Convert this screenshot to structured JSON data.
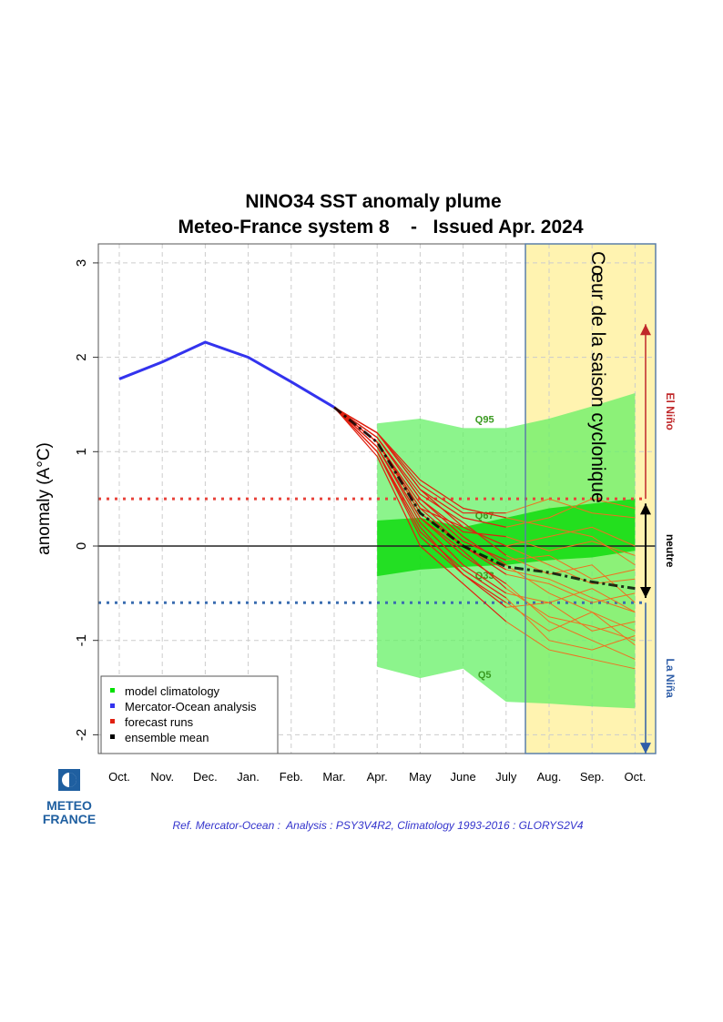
{
  "chart_data": {
    "type": "line",
    "title": "NINO34 SST anomaly plume",
    "subtitle": "Meteo-France system 8    -   Issued Apr. 2024",
    "ylabel": "anomaly (A°C)",
    "ylim": [
      -2.2,
      3.2
    ],
    "yticks": [
      "-2",
      "-1",
      "0",
      "1",
      "2",
      "3"
    ],
    "categories": [
      "Oct.",
      "Nov.",
      "Dec.",
      "Jan.",
      "Feb.",
      "Mar.",
      "Apr.",
      "May",
      "June",
      "July",
      "Aug.",
      "Sep.",
      "Oct."
    ],
    "grid": true,
    "legend_placement": "bottom-left",
    "legend": [
      {
        "label": "model climatology",
        "color": "#00e000"
      },
      {
        "label": "Mercator-Ocean analysis",
        "color": "#3333ee"
      },
      {
        "label": "forecast runs",
        "color": "#e02010"
      },
      {
        "label": "ensemble mean",
        "color": "#000000"
      }
    ],
    "analysis": {
      "start_index": 0,
      "values": [
        1.77,
        1.95,
        2.16,
        2.0,
        1.74,
        1.47
      ]
    },
    "ensemble_mean": {
      "start_index": 5,
      "values": [
        1.47,
        1.1,
        0.35,
        0.0,
        -0.22,
        -0.28,
        -0.38,
        -0.45
      ]
    },
    "climatology": {
      "start_index": 6,
      "Q95": [
        1.3,
        1.35,
        1.25,
        1.25,
        1.35,
        1.48,
        1.62
      ],
      "Q67": [
        0.27,
        0.3,
        0.2,
        0.3,
        0.4,
        0.45,
        0.5
      ],
      "Q33": [
        -0.32,
        -0.25,
        -0.22,
        -0.2,
        -0.15,
        -0.12,
        -0.05
      ],
      "Q5": [
        -1.28,
        -1.4,
        -1.3,
        -1.65,
        -1.67,
        -1.7,
        -1.72
      ],
      "labels": [
        "Q95",
        "Q67",
        "Q33",
        "Q5"
      ]
    },
    "forecast_runs": {
      "start_index": 5,
      "runs": [
        [
          1.47,
          1.2,
          0.6,
          0.3,
          0.2,
          0.3,
          0.5,
          0.4
        ],
        [
          1.47,
          1.15,
          0.5,
          0.1,
          -0.2,
          -0.5,
          -0.7,
          -0.9
        ],
        [
          1.47,
          1.05,
          0.3,
          -0.1,
          -0.4,
          -0.8,
          -1.0,
          -1.2
        ],
        [
          1.47,
          1.1,
          0.4,
          0.2,
          0.0,
          0.1,
          0.2,
          0.0
        ],
        [
          1.47,
          1.0,
          0.2,
          -0.3,
          -0.6,
          -0.9,
          -0.7,
          -1.05
        ],
        [
          1.47,
          1.2,
          0.7,
          0.4,
          0.3,
          0.2,
          0.1,
          -0.2
        ],
        [
          1.47,
          1.1,
          0.35,
          0.0,
          -0.3,
          -0.4,
          -0.6,
          -0.5
        ],
        [
          1.47,
          0.95,
          0.0,
          -0.4,
          -0.8,
          -1.1,
          -1.2,
          -1.3
        ],
        [
          1.47,
          1.15,
          0.55,
          0.25,
          -0.1,
          -0.3,
          -0.2,
          -0.6
        ],
        [
          1.47,
          1.05,
          0.25,
          -0.2,
          -0.5,
          -0.6,
          -0.9,
          -0.8
        ],
        [
          1.47,
          1.2,
          0.65,
          0.35,
          0.35,
          0.5,
          0.35,
          0.3
        ],
        [
          1.47,
          1.0,
          0.1,
          -0.3,
          -0.65,
          -0.6,
          -0.45,
          -0.7
        ],
        [
          1.47,
          1.1,
          0.45,
          0.05,
          -0.15,
          -0.1,
          -0.35,
          -0.25
        ],
        [
          1.47,
          1.05,
          0.3,
          -0.05,
          -0.45,
          -0.75,
          -0.85,
          -1.0
        ],
        [
          1.47,
          1.15,
          0.5,
          0.15,
          0.1,
          -0.05,
          0.05,
          -0.1
        ],
        [
          1.47,
          1.0,
          0.15,
          -0.25,
          -0.55,
          -1.0,
          -1.1,
          -0.95
        ],
        [
          1.47,
          1.1,
          0.4,
          0.0,
          -0.25,
          -0.35,
          -0.55,
          -0.7
        ],
        [
          1.47,
          1.2,
          0.6,
          0.2,
          0.0,
          -0.2,
          -0.4,
          -0.35
        ]
      ]
    },
    "thresholds": [
      {
        "value": 0.5,
        "color": "#e8423a"
      },
      {
        "value": -0.6,
        "color": "#3a6db0"
      }
    ],
    "highlight_region": {
      "from_index": 9.45,
      "to_index": 12.5,
      "color": "#fff3b0",
      "label": "Cœur de la saison cyclonique"
    },
    "regimes": [
      {
        "label": "El Niño",
        "from": 0.5,
        "to": 2.35,
        "color": "#c0282a"
      },
      {
        "label": "neutre",
        "from": 0.45,
        "to": -0.55,
        "color": "#000000"
      },
      {
        "label": "La Niña",
        "from": -0.6,
        "to": -2.2,
        "color": "#2f5ea8"
      }
    ]
  },
  "logo": {
    "line1": "METEO",
    "line2": "FRANCE"
  },
  "reference": "Ref. Mercator-Ocean :  Analysis : PSY3V4R2, Climatology 1993-2016 : GLORYS2V4"
}
